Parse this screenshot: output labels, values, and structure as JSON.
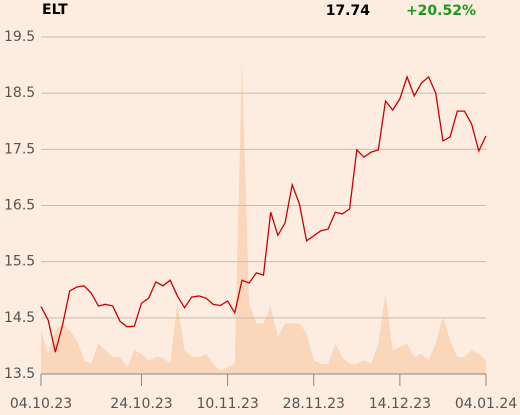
{
  "header": {
    "ticker": "ELT",
    "price": "17.74",
    "change": "+20.52%"
  },
  "chart_data": {
    "type": "line",
    "categories": [
      "04.10.23",
      null,
      null,
      null,
      null,
      null,
      null,
      null,
      null,
      null,
      null,
      null,
      null,
      null,
      "24.10.23",
      null,
      null,
      null,
      null,
      null,
      null,
      null,
      null,
      null,
      null,
      null,
      "10.11.23",
      null,
      null,
      null,
      null,
      null,
      null,
      null,
      null,
      null,
      null,
      null,
      "28.11.23",
      null,
      null,
      null,
      null,
      null,
      null,
      null,
      null,
      null,
      null,
      null,
      "14.12.23",
      null,
      null,
      null,
      null,
      null,
      null,
      null,
      null,
      null,
      null,
      null,
      "04.01.24"
    ],
    "series": [
      {
        "color": "#cc0000",
        "values": [
          14.7,
          14.46,
          13.89,
          14.37,
          14.98,
          15.05,
          15.07,
          14.94,
          14.71,
          14.74,
          14.71,
          14.44,
          14.34,
          14.35,
          14.76,
          14.85,
          15.14,
          15.07,
          15.17,
          14.89,
          14.68,
          14.87,
          14.89,
          14.85,
          14.74,
          14.72,
          14.8,
          14.59,
          15.17,
          15.12,
          15.3,
          15.26,
          16.38,
          15.97,
          16.19,
          16.87,
          16.53,
          15.87,
          15.96,
          16.05,
          16.08,
          16.38,
          16.35,
          16.44,
          17.49,
          17.36,
          17.45,
          17.49,
          18.36,
          18.2,
          18.4,
          18.79,
          18.45,
          18.68,
          18.79,
          18.5,
          17.65,
          17.72,
          18.18,
          18.18,
          17.95,
          17.47,
          17.74
        ]
      }
    ],
    "volume": {
      "color": "#fad6bb",
      "lim": [
        0,
        100
      ],
      "values": [
        13,
        6,
        13,
        15,
        13,
        10,
        4,
        3,
        9,
        7,
        5,
        5,
        2,
        7,
        6,
        4,
        5,
        5,
        3,
        21,
        7,
        5,
        5,
        6,
        3,
        1,
        2,
        3,
        93,
        21,
        15,
        15,
        20,
        11,
        15,
        15,
        15,
        12,
        4,
        3,
        3,
        9,
        5,
        3,
        3,
        4,
        3,
        9,
        24,
        7,
        8,
        9,
        5,
        6,
        4,
        9,
        17,
        10,
        5,
        5,
        7,
        6,
        4
      ]
    },
    "ylim": [
      13.5,
      19.5
    ],
    "yticks": [
      13.5,
      14.5,
      15.5,
      16.5,
      17.5,
      18.5,
      19.5
    ],
    "grid": true
  }
}
